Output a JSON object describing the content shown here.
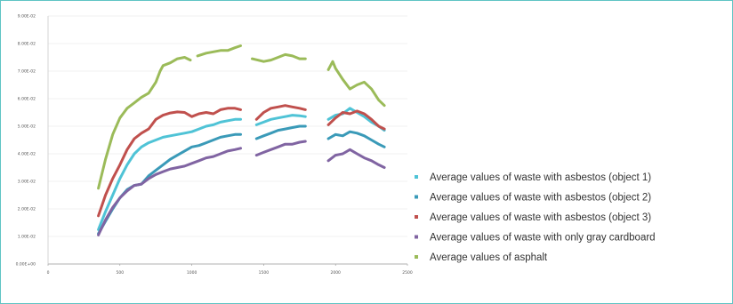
{
  "chart_data": {
    "type": "line",
    "title": "",
    "xlabel": "",
    "ylabel": "",
    "xlim": [
      0,
      2500
    ],
    "ylim": [
      0,
      0.09
    ],
    "x_ticks": [
      0,
      500,
      1000,
      1500,
      2000,
      2500
    ],
    "x_tick_labels": [
      "0",
      "500",
      "1000",
      "1500",
      "2000",
      "2500"
    ],
    "y_ticks": [
      0,
      0.01,
      0.02,
      0.03,
      0.04,
      0.05,
      0.06,
      0.07,
      0.08,
      0.09
    ],
    "y_tick_labels": [
      "0.00E+00",
      "1.00E-02",
      "2.00E-02",
      "3.00E-02",
      "4.00E-02",
      "5.00E-02",
      "6.00E-02",
      "7.00E-02",
      "8.00E-02",
      "9.00E-02"
    ],
    "grid": "horizontal",
    "legend_position": "right",
    "series": [
      {
        "name": "Average values of waste with asbestos (object 1)",
        "color": "#4fc3d6",
        "segments": [
          [
            [
              350,
              0.0125
            ],
            [
              400,
              0.019
            ],
            [
              450,
              0.025
            ],
            [
              500,
              0.031
            ],
            [
              550,
              0.036
            ],
            [
              600,
              0.04
            ],
            [
              650,
              0.0425
            ],
            [
              700,
              0.044
            ],
            [
              750,
              0.045
            ],
            [
              800,
              0.046
            ],
            [
              850,
              0.0465
            ],
            [
              900,
              0.047
            ],
            [
              950,
              0.0475
            ],
            [
              1000,
              0.048
            ],
            [
              1050,
              0.049
            ],
            [
              1100,
              0.05
            ],
            [
              1150,
              0.0505
            ],
            [
              1200,
              0.0515
            ],
            [
              1250,
              0.052
            ],
            [
              1300,
              0.0525
            ],
            [
              1340,
              0.0525
            ]
          ],
          [
            [
              1450,
              0.0505
            ],
            [
              1500,
              0.0515
            ],
            [
              1550,
              0.0525
            ],
            [
              1600,
              0.053
            ],
            [
              1650,
              0.0535
            ],
            [
              1700,
              0.054
            ],
            [
              1750,
              0.0538
            ],
            [
              1790,
              0.0535
            ]
          ],
          [
            [
              1950,
              0.0525
            ],
            [
              2000,
              0.054
            ],
            [
              2050,
              0.0545
            ],
            [
              2100,
              0.0565
            ],
            [
              2150,
              0.055
            ],
            [
              2200,
              0.0535
            ],
            [
              2250,
              0.0515
            ],
            [
              2300,
              0.05
            ],
            [
              2340,
              0.0485
            ]
          ]
        ]
      },
      {
        "name": "Average values of waste with asbestos (object 2)",
        "color": "#3a9ab8",
        "segments": [
          [
            [
              350,
              0.011
            ],
            [
              400,
              0.0155
            ],
            [
              450,
              0.02
            ],
            [
              500,
              0.024
            ],
            [
              550,
              0.027
            ],
            [
              600,
              0.0285
            ],
            [
              650,
              0.029
            ],
            [
              700,
              0.032
            ],
            [
              750,
              0.034
            ],
            [
              800,
              0.036
            ],
            [
              850,
              0.038
            ],
            [
              900,
              0.0395
            ],
            [
              950,
              0.041
            ],
            [
              1000,
              0.0425
            ],
            [
              1050,
              0.043
            ],
            [
              1100,
              0.044
            ],
            [
              1150,
              0.045
            ],
            [
              1200,
              0.046
            ],
            [
              1250,
              0.0465
            ],
            [
              1300,
              0.047
            ],
            [
              1340,
              0.047
            ]
          ],
          [
            [
              1450,
              0.0455
            ],
            [
              1500,
              0.0465
            ],
            [
              1550,
              0.0475
            ],
            [
              1600,
              0.0485
            ],
            [
              1650,
              0.049
            ],
            [
              1700,
              0.0495
            ],
            [
              1750,
              0.05
            ],
            [
              1790,
              0.05
            ]
          ],
          [
            [
              1950,
              0.0455
            ],
            [
              2000,
              0.047
            ],
            [
              2050,
              0.0465
            ],
            [
              2100,
              0.048
            ],
            [
              2150,
              0.0475
            ],
            [
              2200,
              0.0465
            ],
            [
              2250,
              0.045
            ],
            [
              2300,
              0.0435
            ],
            [
              2340,
              0.0425
            ]
          ]
        ]
      },
      {
        "name": "Average values of waste with asbestos (object 3)",
        "color": "#c0504d",
        "segments": [
          [
            [
              350,
              0.0175
            ],
            [
              400,
              0.025
            ],
            [
              450,
              0.031
            ],
            [
              500,
              0.036
            ],
            [
              550,
              0.0415
            ],
            [
              600,
              0.0455
            ],
            [
              650,
              0.0475
            ],
            [
              700,
              0.049
            ],
            [
              750,
              0.0525
            ],
            [
              800,
              0.054
            ],
            [
              850,
              0.0548
            ],
            [
              900,
              0.0552
            ],
            [
              950,
              0.055
            ],
            [
              1000,
              0.0535
            ],
            [
              1050,
              0.0545
            ],
            [
              1100,
              0.055
            ],
            [
              1150,
              0.0545
            ],
            [
              1200,
              0.056
            ],
            [
              1250,
              0.0565
            ],
            [
              1300,
              0.0565
            ],
            [
              1340,
              0.056
            ]
          ],
          [
            [
              1450,
              0.0525
            ],
            [
              1500,
              0.055
            ],
            [
              1550,
              0.0565
            ],
            [
              1600,
              0.057
            ],
            [
              1650,
              0.0575
            ],
            [
              1700,
              0.057
            ],
            [
              1750,
              0.0565
            ],
            [
              1790,
              0.056
            ]
          ],
          [
            [
              1950,
              0.0505
            ],
            [
              2000,
              0.053
            ],
            [
              2050,
              0.055
            ],
            [
              2100,
              0.0545
            ],
            [
              2150,
              0.0555
            ],
            [
              2200,
              0.0545
            ],
            [
              2250,
              0.0525
            ],
            [
              2300,
              0.05
            ],
            [
              2340,
              0.049
            ]
          ]
        ]
      },
      {
        "name": "Average values of waste with only gray cardboard",
        "color": "#8064a2",
        "segments": [
          [
            [
              350,
              0.0105
            ],
            [
              400,
              0.016
            ],
            [
              450,
              0.0205
            ],
            [
              500,
              0.024
            ],
            [
              550,
              0.0265
            ],
            [
              600,
              0.0285
            ],
            [
              650,
              0.029
            ],
            [
              700,
              0.031
            ],
            [
              750,
              0.0325
            ],
            [
              800,
              0.0335
            ],
            [
              850,
              0.0345
            ],
            [
              900,
              0.035
            ],
            [
              950,
              0.0355
            ],
            [
              1000,
              0.0365
            ],
            [
              1050,
              0.0375
            ],
            [
              1100,
              0.0385
            ],
            [
              1150,
              0.039
            ],
            [
              1200,
              0.04
            ],
            [
              1250,
              0.041
            ],
            [
              1300,
              0.0415
            ],
            [
              1340,
              0.042
            ]
          ],
          [
            [
              1450,
              0.0395
            ],
            [
              1500,
              0.0405
            ],
            [
              1550,
              0.0415
            ],
            [
              1600,
              0.0425
            ],
            [
              1650,
              0.0435
            ],
            [
              1700,
              0.0435
            ],
            [
              1750,
              0.0442
            ],
            [
              1790,
              0.0445
            ]
          ],
          [
            [
              1950,
              0.0375
            ],
            [
              2000,
              0.0395
            ],
            [
              2050,
              0.04
            ],
            [
              2100,
              0.0415
            ],
            [
              2150,
              0.04
            ],
            [
              2200,
              0.0385
            ],
            [
              2250,
              0.0375
            ],
            [
              2300,
              0.036
            ],
            [
              2340,
              0.035
            ]
          ]
        ]
      },
      {
        "name": "Average values of asphalt",
        "color": "#9bbb59",
        "segments": [
          [
            [
              350,
              0.0275
            ],
            [
              400,
              0.038
            ],
            [
              450,
              0.047
            ],
            [
              500,
              0.053
            ],
            [
              550,
              0.0565
            ],
            [
              600,
              0.0585
            ],
            [
              650,
              0.0605
            ],
            [
              700,
              0.062
            ],
            [
              750,
              0.066
            ],
            [
              780,
              0.07
            ],
            [
              800,
              0.072
            ],
            [
              850,
              0.073
            ],
            [
              900,
              0.0745
            ],
            [
              950,
              0.075
            ],
            [
              990,
              0.074
            ]
          ],
          [
            [
              1040,
              0.0755
            ],
            [
              1100,
              0.0765
            ],
            [
              1150,
              0.077
            ],
            [
              1200,
              0.0775
            ],
            [
              1250,
              0.0775
            ],
            [
              1300,
              0.0785
            ],
            [
              1340,
              0.0792
            ]
          ],
          [
            [
              1420,
              0.0745
            ],
            [
              1500,
              0.0735
            ],
            [
              1550,
              0.074
            ],
            [
              1600,
              0.075
            ],
            [
              1650,
              0.076
            ],
            [
              1700,
              0.0755
            ],
            [
              1750,
              0.0745
            ],
            [
              1790,
              0.0745
            ]
          ],
          [
            [
              1950,
              0.0705
            ],
            [
              1980,
              0.0735
            ],
            [
              2000,
              0.071
            ],
            [
              2050,
              0.067
            ],
            [
              2100,
              0.0635
            ],
            [
              2150,
              0.065
            ],
            [
              2200,
              0.066
            ],
            [
              2250,
              0.0635
            ],
            [
              2300,
              0.0595
            ],
            [
              2340,
              0.0575
            ]
          ]
        ]
      }
    ]
  }
}
